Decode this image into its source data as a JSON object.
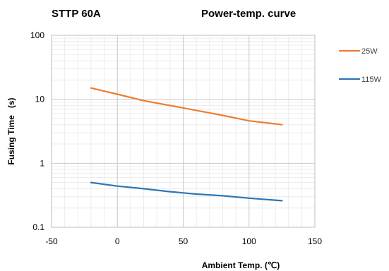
{
  "chart_data": {
    "type": "line",
    "title_left": "STTP 60A",
    "title_right": "Power-temp. curve",
    "xlabel": "Ambient Temp. (℃)",
    "ylabel": "Fusing Time   (s)",
    "xlim": [
      -50,
      150
    ],
    "ylim": [
      0.1,
      100
    ],
    "y_scale": "log",
    "x_ticks": [
      -50,
      0,
      50,
      100,
      150
    ],
    "x_tick_labels": [
      "-50",
      "0",
      "50",
      "100",
      "150"
    ],
    "y_ticks": [
      0.1,
      1,
      10,
      100
    ],
    "y_tick_labels": [
      "0.1",
      "1",
      "10",
      "100"
    ],
    "grid": true,
    "legend_position": "right",
    "series": [
      {
        "name": "25W",
        "color": "#ED7D31",
        "x": [
          -20,
          0,
          20,
          40,
          60,
          80,
          100,
          125
        ],
        "y": [
          15,
          12,
          9.5,
          8,
          6.7,
          5.6,
          4.6,
          4.0
        ]
      },
      {
        "name": "115W",
        "color": "#2E75B6",
        "x": [
          -20,
          0,
          20,
          40,
          60,
          80,
          100,
          125
        ],
        "y": [
          0.5,
          0.44,
          0.4,
          0.36,
          0.33,
          0.31,
          0.285,
          0.26
        ]
      }
    ]
  }
}
